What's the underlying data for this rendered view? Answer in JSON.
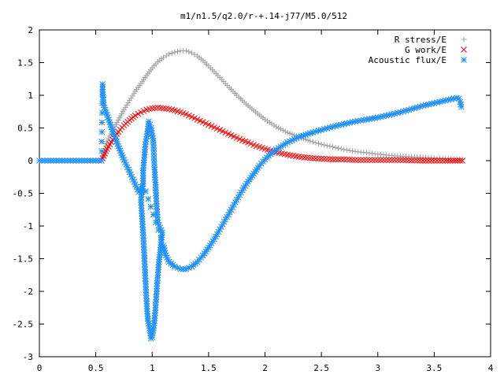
{
  "chart_data": {
    "type": "scatter",
    "title": "m1/n1.5/q2.0/r-+.14-j77/M5.0/512",
    "xlabel": "",
    "ylabel": "",
    "xlim": [
      0,
      4
    ],
    "ylim": [
      -3,
      2
    ],
    "xticks": [
      0,
      0.5,
      1,
      1.5,
      2,
      2.5,
      3,
      3.5,
      4
    ],
    "xtick_labels": [
      "0",
      "0.5",
      "1",
      "1.5",
      "2",
      "2.5",
      "3",
      "3.5",
      "4"
    ],
    "yticks": [
      -3,
      -2.5,
      -2,
      -1.5,
      -1,
      -0.5,
      0,
      0.5,
      1,
      1.5,
      2
    ],
    "ytick_labels": [
      "-3",
      "-2.5",
      "-2",
      "-1.5",
      "-1",
      "-0.5",
      "0",
      "0.5",
      "1",
      "1.5",
      "2"
    ],
    "grid": false,
    "legend_position": "top-right",
    "series": [
      {
        "name": "R stress/E",
        "marker": "plus",
        "color": "#a0a0a0",
        "points": [
          [
            0.55,
            0.0
          ],
          [
            0.6,
            0.3
          ],
          [
            0.65,
            0.45
          ],
          [
            0.7,
            0.62
          ],
          [
            0.75,
            0.78
          ],
          [
            0.8,
            0.92
          ],
          [
            0.85,
            1.06
          ],
          [
            0.9,
            1.18
          ],
          [
            0.95,
            1.3
          ],
          [
            1.0,
            1.42
          ],
          [
            1.05,
            1.51
          ],
          [
            1.1,
            1.58
          ],
          [
            1.15,
            1.63
          ],
          [
            1.2,
            1.66
          ],
          [
            1.25,
            1.68
          ],
          [
            1.3,
            1.68
          ],
          [
            1.35,
            1.65
          ],
          [
            1.4,
            1.6
          ],
          [
            1.45,
            1.53
          ],
          [
            1.5,
            1.45
          ],
          [
            1.55,
            1.36
          ],
          [
            1.6,
            1.27
          ],
          [
            1.65,
            1.18
          ],
          [
            1.7,
            1.09
          ],
          [
            1.75,
            1.0
          ],
          [
            1.8,
            0.92
          ],
          [
            1.85,
            0.84
          ],
          [
            1.9,
            0.77
          ],
          [
            1.95,
            0.7
          ],
          [
            2.0,
            0.63
          ],
          [
            2.1,
            0.52
          ],
          [
            2.2,
            0.43
          ],
          [
            2.3,
            0.36
          ],
          [
            2.4,
            0.3
          ],
          [
            2.5,
            0.25
          ],
          [
            2.6,
            0.21
          ],
          [
            2.7,
            0.17
          ],
          [
            2.8,
            0.14
          ],
          [
            2.9,
            0.12
          ],
          [
            3.0,
            0.1
          ],
          [
            3.1,
            0.08
          ],
          [
            3.2,
            0.07
          ],
          [
            3.3,
            0.06
          ],
          [
            3.4,
            0.05
          ],
          [
            3.5,
            0.04
          ],
          [
            3.6,
            0.03
          ],
          [
            3.7,
            0.03
          ],
          [
            3.75,
            0.02
          ]
        ]
      },
      {
        "name": "G work/E",
        "marker": "cross",
        "color": "#ff0000",
        "points": [
          [
            0.55,
            0.0
          ],
          [
            0.6,
            0.18
          ],
          [
            0.65,
            0.32
          ],
          [
            0.7,
            0.44
          ],
          [
            0.75,
            0.54
          ],
          [
            0.8,
            0.62
          ],
          [
            0.85,
            0.69
          ],
          [
            0.9,
            0.74
          ],
          [
            0.95,
            0.78
          ],
          [
            1.0,
            0.8
          ],
          [
            1.05,
            0.81
          ],
          [
            1.1,
            0.8
          ],
          [
            1.15,
            0.79
          ],
          [
            1.2,
            0.77
          ],
          [
            1.25,
            0.74
          ],
          [
            1.3,
            0.71
          ],
          [
            1.35,
            0.67
          ],
          [
            1.4,
            0.63
          ],
          [
            1.45,
            0.59
          ],
          [
            1.5,
            0.55
          ],
          [
            1.55,
            0.51
          ],
          [
            1.6,
            0.47
          ],
          [
            1.65,
            0.43
          ],
          [
            1.7,
            0.39
          ],
          [
            1.75,
            0.35
          ],
          [
            1.8,
            0.31
          ],
          [
            1.85,
            0.28
          ],
          [
            1.9,
            0.24
          ],
          [
            1.95,
            0.21
          ],
          [
            2.0,
            0.18
          ],
          [
            2.1,
            0.13
          ],
          [
            2.2,
            0.09
          ],
          [
            2.3,
            0.06
          ],
          [
            2.4,
            0.04
          ],
          [
            2.5,
            0.03
          ],
          [
            2.6,
            0.02
          ],
          [
            2.7,
            0.02
          ],
          [
            2.8,
            0.01
          ],
          [
            2.9,
            0.01
          ],
          [
            3.0,
            0.01
          ],
          [
            3.2,
            0.01
          ],
          [
            3.4,
            0.0
          ],
          [
            3.6,
            0.0
          ],
          [
            3.75,
            0.0
          ]
        ]
      },
      {
        "name": "Acoustic flux/E",
        "marker": "star",
        "color": "#1e90ff",
        "points": [
          [
            0.0,
            0.0
          ],
          [
            0.05,
            0.0
          ],
          [
            0.1,
            0.0
          ],
          [
            0.15,
            0.0
          ],
          [
            0.2,
            0.0
          ],
          [
            0.25,
            0.0
          ],
          [
            0.3,
            0.0
          ],
          [
            0.35,
            0.0
          ],
          [
            0.4,
            0.0
          ],
          [
            0.45,
            0.0
          ],
          [
            0.5,
            0.0
          ],
          [
            0.55,
            0.0
          ],
          [
            0.56,
            1.17
          ],
          [
            0.56,
            1.05
          ],
          [
            0.57,
            0.85
          ],
          [
            0.6,
            0.7
          ],
          [
            0.63,
            0.55
          ],
          [
            0.66,
            0.4
          ],
          [
            0.7,
            0.22
          ],
          [
            0.74,
            0.05
          ],
          [
            0.78,
            -0.1
          ],
          [
            0.82,
            -0.25
          ],
          [
            0.86,
            -0.4
          ],
          [
            0.88,
            -0.48
          ],
          [
            0.9,
            -0.45
          ],
          [
            0.92,
            -0.35
          ],
          [
            0.9,
            -0.6
          ],
          [
            0.91,
            -0.85
          ],
          [
            0.92,
            -1.1
          ],
          [
            0.93,
            -1.45
          ],
          [
            0.94,
            -1.8
          ],
          [
            0.95,
            -2.15
          ],
          [
            0.96,
            -2.42
          ],
          [
            0.98,
            -2.6
          ],
          [
            0.99,
            -2.72
          ],
          [
            1.0,
            -2.7
          ],
          [
            1.01,
            -2.6
          ],
          [
            1.02,
            -2.45
          ],
          [
            1.03,
            -2.25
          ],
          [
            1.04,
            -2.0
          ],
          [
            1.05,
            -1.75
          ],
          [
            1.06,
            -1.55
          ],
          [
            1.07,
            -1.4
          ],
          [
            1.08,
            -1.25
          ],
          [
            1.09,
            -1.1
          ],
          [
            1.05,
            -0.95
          ],
          [
            1.04,
            -0.7
          ],
          [
            1.03,
            -0.37
          ],
          [
            1.02,
            -0.1
          ],
          [
            1.01,
            0.3
          ],
          [
            0.99,
            0.5
          ],
          [
            0.97,
            0.6
          ],
          [
            0.96,
            0.45
          ],
          [
            0.94,
            0.25
          ],
          [
            0.93,
            0.05
          ],
          [
            0.92,
            -0.15
          ],
          [
            0.92,
            -0.35
          ],
          [
            1.1,
            -1.3
          ],
          [
            1.12,
            -1.45
          ],
          [
            1.15,
            -1.55
          ],
          [
            1.2,
            -1.62
          ],
          [
            1.25,
            -1.66
          ],
          [
            1.3,
            -1.66
          ],
          [
            1.35,
            -1.62
          ],
          [
            1.4,
            -1.55
          ],
          [
            1.45,
            -1.45
          ],
          [
            1.5,
            -1.33
          ],
          [
            1.55,
            -1.2
          ],
          [
            1.6,
            -1.05
          ],
          [
            1.65,
            -0.9
          ],
          [
            1.7,
            -0.75
          ],
          [
            1.75,
            -0.6
          ],
          [
            1.8,
            -0.45
          ],
          [
            1.85,
            -0.32
          ],
          [
            1.9,
            -0.2
          ],
          [
            1.95,
            -0.08
          ],
          [
            2.0,
            0.02
          ],
          [
            2.05,
            0.1
          ],
          [
            2.1,
            0.17
          ],
          [
            2.2,
            0.28
          ],
          [
            2.3,
            0.36
          ],
          [
            2.4,
            0.42
          ],
          [
            2.5,
            0.47
          ],
          [
            2.6,
            0.52
          ],
          [
            2.7,
            0.56
          ],
          [
            2.8,
            0.6
          ],
          [
            2.9,
            0.63
          ],
          [
            3.0,
            0.66
          ],
          [
            3.1,
            0.7
          ],
          [
            3.2,
            0.74
          ],
          [
            3.3,
            0.79
          ],
          [
            3.4,
            0.84
          ],
          [
            3.5,
            0.88
          ],
          [
            3.6,
            0.92
          ],
          [
            3.7,
            0.96
          ],
          [
            3.72,
            0.95
          ],
          [
            3.73,
            0.9
          ],
          [
            3.74,
            0.82
          ]
        ]
      }
    ]
  }
}
